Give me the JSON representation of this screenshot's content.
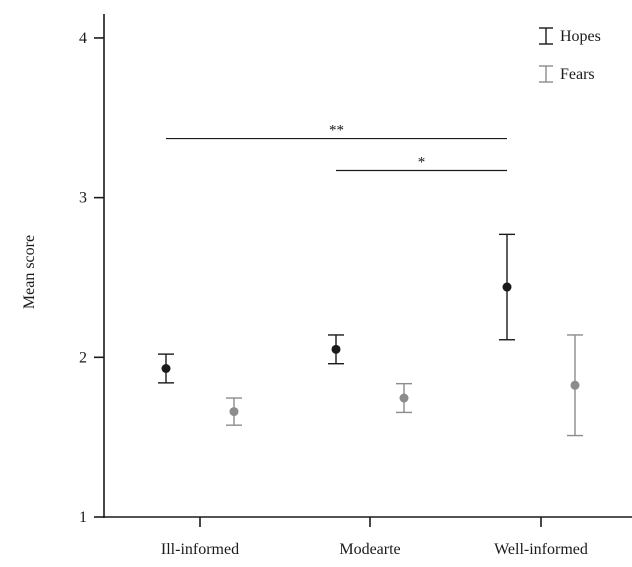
{
  "chart_data": {
    "type": "scatter",
    "subtype": "error-bar",
    "title": "",
    "xlabel": "",
    "ylabel": "Mean score",
    "categories": [
      "Ill-informed",
      "Modearte",
      "Well-informed"
    ],
    "ylim": [
      1,
      4.15
    ],
    "yticks": [
      1,
      2,
      3,
      4
    ],
    "grid": false,
    "legend_position": "top-right",
    "series": [
      {
        "name": "Hopes",
        "color": "#1a1a1a",
        "values": [
          1.93,
          2.05,
          2.44
        ],
        "lower": [
          1.84,
          1.96,
          2.11
        ],
        "upper": [
          2.02,
          2.14,
          2.77
        ]
      },
      {
        "name": "Fears",
        "color": "#8c8c8c",
        "values": [
          1.66,
          1.745,
          1.825
        ],
        "lower": [
          1.575,
          1.655,
          1.51
        ],
        "upper": [
          1.745,
          1.835,
          2.14
        ]
      }
    ],
    "annotations": [
      {
        "label": "**",
        "from": "Ill-informed",
        "to": "Well-informed",
        "y": 3.37
      },
      {
        "label": "*",
        "from": "Modearte",
        "to": "Well-informed",
        "y": 3.17
      }
    ]
  }
}
